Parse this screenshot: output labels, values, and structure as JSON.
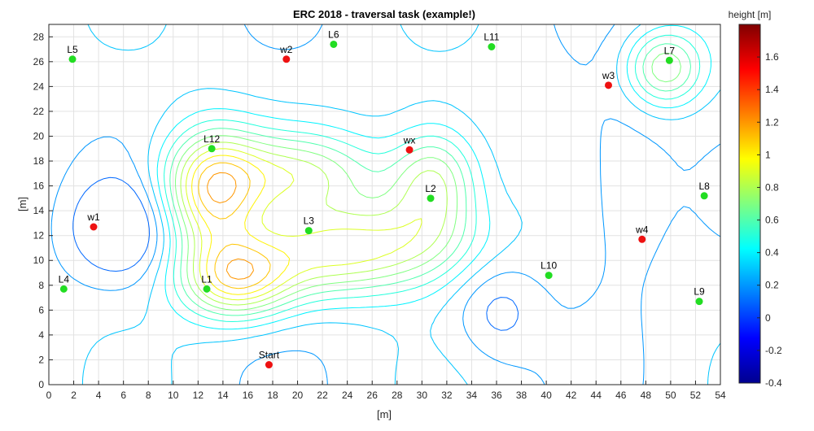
{
  "chart_data": {
    "type": "scatter",
    "title": "ERC 2018 - traversal task (example!)",
    "xlabel": "[m]",
    "ylabel": "[m]",
    "xlim": [
      0,
      54
    ],
    "ylim": [
      0,
      29
    ],
    "xticks": [
      0,
      2,
      4,
      6,
      8,
      10,
      12,
      14,
      16,
      18,
      20,
      22,
      24,
      26,
      28,
      30,
      32,
      34,
      36,
      38,
      40,
      42,
      44,
      46,
      48,
      50,
      52,
      54
    ],
    "yticks": [
      0,
      2,
      4,
      6,
      8,
      10,
      12,
      14,
      16,
      18,
      20,
      22,
      24,
      26,
      28
    ],
    "grid": true,
    "background_style": "contour",
    "colorbar": {
      "label": "height [m]",
      "min": -0.4,
      "max": 1.8,
      "ticks": [
        -0.4,
        -0.2,
        0,
        0.2,
        0.4,
        0.6,
        0.8,
        1,
        1.2,
        1.4,
        1.6
      ],
      "colormap": "jet"
    },
    "series": [
      {
        "name": "landmarks",
        "color": "#22dd22",
        "points": [
          {
            "label": "L1",
            "x": 12.7,
            "y": 7.7
          },
          {
            "label": "L2",
            "x": 30.7,
            "y": 15.0
          },
          {
            "label": "L3",
            "x": 20.9,
            "y": 12.4
          },
          {
            "label": "L4",
            "x": 1.2,
            "y": 7.7
          },
          {
            "label": "L5",
            "x": 1.9,
            "y": 26.2
          },
          {
            "label": "L6",
            "x": 22.9,
            "y": 27.4
          },
          {
            "label": "L7",
            "x": 49.9,
            "y": 26.1
          },
          {
            "label": "L8",
            "x": 52.7,
            "y": 15.2
          },
          {
            "label": "L9",
            "x": 52.3,
            "y": 6.7
          },
          {
            "label": "L10",
            "x": 40.2,
            "y": 8.8
          },
          {
            "label": "L11",
            "x": 35.6,
            "y": 27.2
          },
          {
            "label": "L12",
            "x": 13.1,
            "y": 19.0
          }
        ]
      },
      {
        "name": "waypoints",
        "color": "#ee1111",
        "points": [
          {
            "label": "Start",
            "x": 17.7,
            "y": 1.6
          },
          {
            "label": "w1",
            "x": 3.6,
            "y": 12.7
          },
          {
            "label": "w2",
            "x": 19.1,
            "y": 26.2
          },
          {
            "label": "w3",
            "x": 45.0,
            "y": 24.1
          },
          {
            "label": "w4",
            "x": 47.7,
            "y": 11.7
          },
          {
            "label": "wx",
            "x": 29.0,
            "y": 18.9
          }
        ]
      }
    ]
  }
}
